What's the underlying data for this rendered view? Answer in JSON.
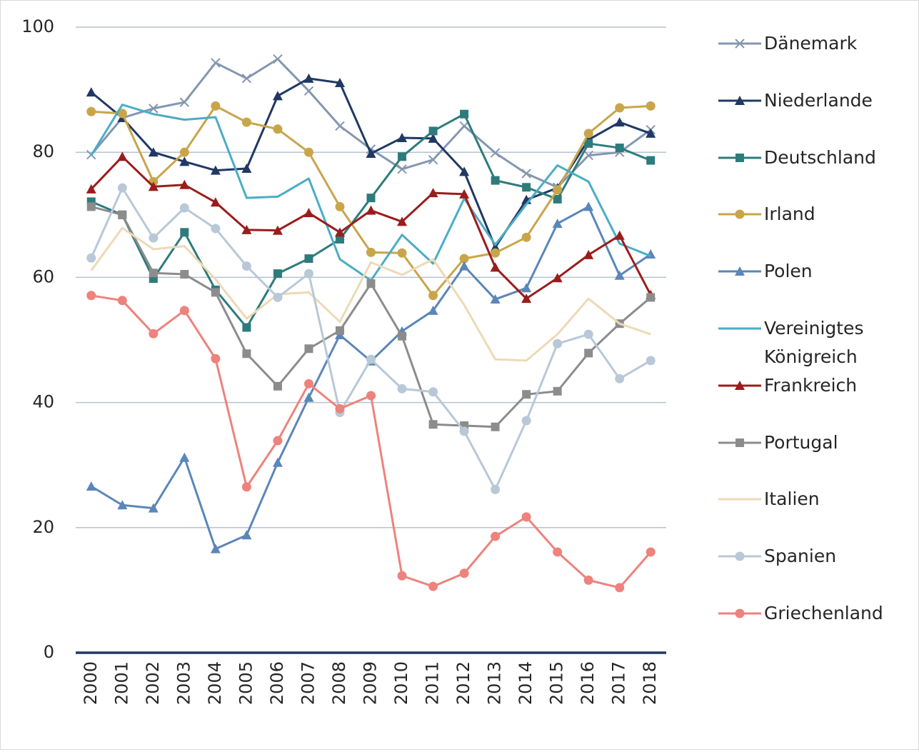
{
  "chart_data": {
    "type": "line",
    "categories": [
      "2000",
      "2001",
      "2002",
      "2003",
      "2004",
      "2005",
      "2006",
      "2007",
      "2008",
      "2009",
      "2010",
      "2011",
      "2012",
      "2013",
      "2014",
      "2015",
      "2016",
      "2017",
      "2018"
    ],
    "ylim": [
      0,
      100
    ],
    "yticks": [
      0,
      20,
      40,
      60,
      80,
      100
    ],
    "grid": true,
    "legend": "right",
    "series": [
      {
        "name": "Dänemark",
        "color": "#8497b0",
        "marker": "x",
        "values": [
          79.6,
          85.5,
          87,
          88,
          94.3,
          91.8,
          94.9,
          89.8,
          84.2,
          80.5,
          77.3,
          78.8,
          84.2,
          79.9,
          76.6,
          74.4,
          79.5,
          80,
          83.6
        ]
      },
      {
        "name": "Niederlande",
        "color": "#203864",
        "marker": "triangle",
        "values": [
          89.6,
          85.5,
          80,
          78.5,
          77.1,
          77.4,
          89,
          91.8,
          91.1,
          79.8,
          82.3,
          82.2,
          76.9,
          64.8,
          72.4,
          74.3,
          82,
          84.8,
          83
        ]
      },
      {
        "name": "Deutschland",
        "color": "#2e7b7b",
        "marker": "square",
        "values": [
          72.1,
          70,
          59.8,
          67.2,
          58,
          52,
          60.6,
          63,
          66.1,
          72.7,
          79.3,
          83.4,
          86.1,
          75.5,
          74.4,
          72.5,
          81.4,
          80.7,
          78.7
        ]
      },
      {
        "name": "Irland",
        "color": "#c9a54a",
        "marker": "circle",
        "values": [
          86.5,
          86.2,
          75.3,
          80,
          87.4,
          84.8,
          83.7,
          80,
          71.3,
          64,
          63.9,
          57.1,
          63,
          63.9,
          66.4,
          74,
          83,
          87.1,
          87.4
        ]
      },
      {
        "name": "Polen",
        "color": "#5b86b8",
        "marker": "triangle",
        "values": [
          26.6,
          23.6,
          23.1,
          31.2,
          16.6,
          18.8,
          30.4,
          40.8,
          50.8,
          46.6,
          51.4,
          54.7,
          61.8,
          56.5,
          58.3,
          68.6,
          71.3,
          60.3,
          63.7
        ]
      },
      {
        "name": "Vereinigtes Königreich",
        "color": "#4bacc6",
        "marker": null,
        "values": [
          79.5,
          87.6,
          86.1,
          85.2,
          85.6,
          72.7,
          72.9,
          75.8,
          62.9,
          59.5,
          66.8,
          62.2,
          72.6,
          65.2,
          71.7,
          77.9,
          75.3,
          65.4,
          63.4
        ]
      },
      {
        "name": "Frankreich",
        "color": "#9b1c1c",
        "marker": "triangle",
        "values": [
          74.1,
          79.3,
          74.5,
          74.8,
          72,
          67.6,
          67.5,
          70.3,
          67.2,
          70.7,
          68.9,
          73.5,
          73.3,
          61.6,
          56.6,
          59.9,
          63.6,
          66.7,
          57.2
        ]
      },
      {
        "name": "Portugal",
        "color": "#8c8c8c",
        "marker": "square",
        "values": [
          71.3,
          70,
          60.7,
          60.5,
          57.6,
          47.8,
          42.6,
          48.6,
          51.5,
          59,
          50.6,
          36.5,
          36.3,
          36.1,
          41.3,
          41.8,
          47.9,
          52.6,
          56.8
        ]
      },
      {
        "name": "Italien",
        "color": "#eed9b6",
        "marker": null,
        "values": [
          61.1,
          67.9,
          64.5,
          65,
          59.7,
          53.4,
          57.3,
          57.6,
          52.9,
          62.4,
          60.4,
          62.9,
          55.6,
          46.9,
          46.7,
          50.9,
          56.6,
          52.6,
          50.9
        ]
      },
      {
        "name": "Spanien",
        "color": "#b8c8d8",
        "marker": "circle",
        "values": [
          63.1,
          74.3,
          66.3,
          71.1,
          67.8,
          61.8,
          56.8,
          60.6,
          38.4,
          46.9,
          42.2,
          41.7,
          35.4,
          26.1,
          37.1,
          49.4,
          50.9,
          43.8,
          46.7
        ]
      },
      {
        "name": "Griechenland",
        "color": "#ee827c",
        "marker": "circle",
        "values": [
          57.1,
          56.3,
          51,
          54.7,
          47,
          26.5,
          33.9,
          43,
          39,
          41.1,
          12.3,
          10.6,
          12.7,
          18.6,
          21.7,
          16.1,
          11.6,
          10.4,
          16.1
        ]
      }
    ]
  }
}
